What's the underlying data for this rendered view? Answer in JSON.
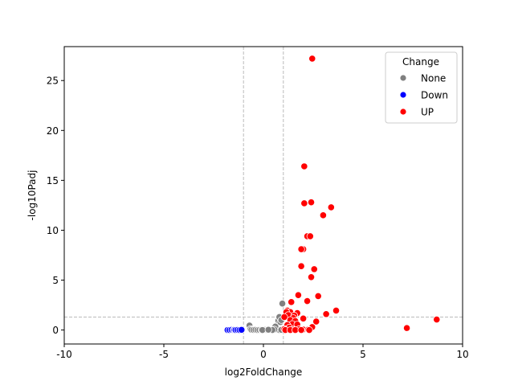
{
  "chart_data": {
    "type": "scatter",
    "title": "",
    "xlabel": "log2FoldChange",
    "ylabel": "-log10Padj",
    "xlim": [
      -10,
      10
    ],
    "ylim": [
      -1.4,
      28.4
    ],
    "xticks": [
      -10,
      -5,
      0,
      5,
      10
    ],
    "xtick_labels": [
      "-10",
      "-5",
      "0",
      "5",
      "10"
    ],
    "yticks": [
      0,
      5,
      10,
      15,
      20,
      25
    ],
    "ytick_labels": [
      "0",
      "5",
      "10",
      "15",
      "20",
      "25"
    ],
    "grid": false,
    "threshold_lines": {
      "x": [
        -1,
        1
      ],
      "y": [
        1.3
      ]
    },
    "legend": {
      "title": "Change",
      "placement": "top-right",
      "entries": [
        "None",
        "Down",
        "UP"
      ]
    },
    "series": [
      {
        "name": "None",
        "color": "#808080",
        "points": [
          [
            -0.7,
            0.45
          ],
          [
            -0.65,
            0.1
          ],
          [
            -0.6,
            0.02
          ],
          [
            -0.5,
            0.01
          ],
          [
            -0.4,
            0.02
          ],
          [
            -0.3,
            0.0
          ],
          [
            -0.2,
            0.01
          ],
          [
            -0.1,
            0.02
          ],
          [
            0.0,
            0.0
          ],
          [
            0.1,
            0.02
          ],
          [
            0.2,
            0.0
          ],
          [
            0.3,
            0.01
          ],
          [
            0.4,
            0.02
          ],
          [
            0.5,
            0.0
          ],
          [
            0.6,
            0.01
          ],
          [
            0.7,
            0.03
          ],
          [
            0.8,
            0.0
          ],
          [
            0.9,
            0.02
          ],
          [
            0.6,
            0.35
          ],
          [
            0.75,
            0.95
          ],
          [
            0.8,
            1.3
          ],
          [
            0.85,
            0.8
          ],
          [
            0.9,
            1.0
          ],
          [
            0.95,
            2.65
          ],
          [
            0.55,
            0.05
          ],
          [
            0.45,
            0.0
          ],
          [
            -0.05,
            0.0
          ],
          [
            0.25,
            0.03
          ]
        ]
      },
      {
        "name": "Down",
        "color": "#0000ff",
        "points": [
          [
            -1.8,
            0.0
          ],
          [
            -1.7,
            0.0
          ],
          [
            -1.6,
            0.02
          ],
          [
            -1.5,
            0.0
          ],
          [
            -1.45,
            0.03
          ],
          [
            -1.4,
            0.0
          ],
          [
            -1.3,
            0.01
          ],
          [
            -1.2,
            0.0
          ],
          [
            -1.1,
            0.02
          ]
        ]
      },
      {
        "name": "UP",
        "color": "#ff0000",
        "points": [
          [
            2.45,
            27.2
          ],
          [
            2.05,
            16.4
          ],
          [
            2.4,
            12.8
          ],
          [
            2.05,
            12.7
          ],
          [
            3.4,
            12.3
          ],
          [
            3.0,
            11.5
          ],
          [
            2.2,
            9.4
          ],
          [
            2.35,
            9.4
          ],
          [
            2.0,
            8.1
          ],
          [
            1.9,
            8.1
          ],
          [
            1.9,
            6.4
          ],
          [
            2.55,
            6.1
          ],
          [
            2.4,
            5.3
          ],
          [
            1.75,
            3.5
          ],
          [
            2.75,
            3.4
          ],
          [
            1.4,
            2.8
          ],
          [
            2.2,
            2.9
          ],
          [
            3.65,
            1.95
          ],
          [
            1.2,
            1.95
          ],
          [
            1.35,
            1.8
          ],
          [
            1.15,
            1.8
          ],
          [
            1.7,
            1.7
          ],
          [
            3.15,
            1.6
          ],
          [
            1.25,
            1.5
          ],
          [
            1.55,
            1.45
          ],
          [
            1.05,
            1.3
          ],
          [
            1.5,
            1.2
          ],
          [
            2.0,
            1.15
          ],
          [
            1.35,
            1.0
          ],
          [
            1.6,
            0.9
          ],
          [
            2.65,
            0.85
          ],
          [
            1.45,
            0.6
          ],
          [
            1.7,
            0.55
          ],
          [
            1.2,
            0.5
          ],
          [
            2.45,
            0.3
          ],
          [
            1.3,
            0.25
          ],
          [
            1.05,
            0.1
          ],
          [
            1.5,
            0.05
          ],
          [
            1.8,
            0.1
          ],
          [
            2.0,
            0.05
          ],
          [
            2.25,
            0.05
          ],
          [
            1.1,
            0.0
          ],
          [
            1.35,
            0.0
          ],
          [
            1.6,
            0.0
          ],
          [
            1.9,
            0.0
          ],
          [
            2.3,
            0.0
          ],
          [
            7.2,
            0.2
          ],
          [
            8.7,
            1.05
          ]
        ]
      }
    ]
  }
}
